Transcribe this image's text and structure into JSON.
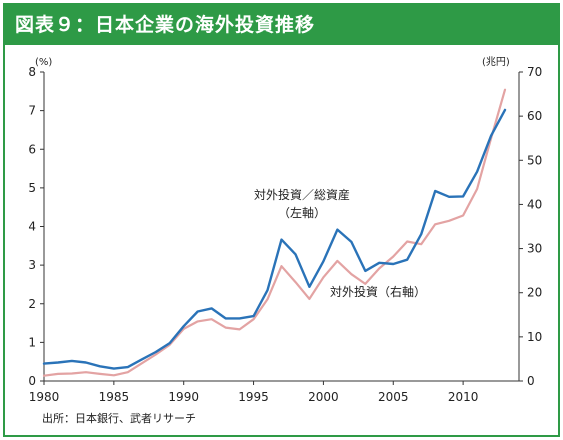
{
  "title": "図表９：日本企業の海外投資推移",
  "source": "出所：日本銀行、武者リサーチ",
  "chart_data": {
    "type": "line",
    "y_left_unit": "(%)",
    "y_right_unit": "(兆円)",
    "y_left_range": [
      0,
      8
    ],
    "y_right_range": [
      0,
      70
    ],
    "x_range": [
      1980,
      2014
    ],
    "x_ticks": [
      "1980",
      "1985",
      "1990",
      "1995",
      "2000",
      "2005",
      "2010"
    ],
    "y_left_ticks": [
      "0",
      "1",
      "2",
      "3",
      "4",
      "5",
      "6",
      "7",
      "8"
    ],
    "y_right_ticks": [
      "0",
      "10",
      "20",
      "30",
      "40",
      "50",
      "60",
      "70"
    ],
    "annotations": {
      "ratio_line1": "対外投資／総資産",
      "ratio_line2": "（左軸）",
      "amount": "対外投資（右軸）"
    },
    "series": [
      {
        "name": "対外投資／総資産（左軸）",
        "axis": "left",
        "color": "#2a73b8",
        "x": [
          1980,
          1981,
          1982,
          1983,
          1984,
          1985,
          1986,
          1987,
          1988,
          1989,
          1990,
          1991,
          1992,
          1993,
          1994,
          1995,
          1996,
          1997,
          1998,
          1999,
          2000,
          2001,
          2002,
          2003,
          2004,
          2005,
          2006,
          2007,
          2008,
          2009,
          2010,
          2011,
          2012,
          2013
        ],
        "y": [
          0.45,
          0.48,
          0.52,
          0.48,
          0.38,
          0.32,
          0.36,
          0.56,
          0.75,
          0.98,
          1.42,
          1.8,
          1.88,
          1.62,
          1.62,
          1.68,
          2.35,
          3.66,
          3.28,
          2.44,
          3.1,
          3.92,
          3.6,
          2.85,
          3.06,
          3.03,
          3.14,
          3.8,
          4.92,
          4.77,
          4.78,
          5.42,
          6.35,
          7.02
        ]
      },
      {
        "name": "対外投資（右軸）",
        "axis": "right",
        "color": "#e3a3a3",
        "x": [
          1980,
          1981,
          1982,
          1983,
          1984,
          1985,
          1986,
          1987,
          1988,
          1989,
          1990,
          1991,
          1992,
          1993,
          1994,
          1995,
          1996,
          1997,
          1998,
          1999,
          2000,
          2001,
          2002,
          2003,
          2004,
          2005,
          2006,
          2007,
          2008,
          2009,
          2010,
          2011,
          2012,
          2013
        ],
        "y": [
          1.2,
          1.6,
          1.7,
          2.0,
          1.6,
          1.3,
          2.0,
          4.0,
          6.0,
          8.2,
          11.8,
          13.5,
          14.0,
          12.1,
          11.7,
          14.0,
          18.5,
          26.0,
          22.4,
          18.6,
          23.5,
          27.2,
          24.2,
          22.0,
          25.5,
          28.2,
          31.6,
          31.0,
          35.5,
          36.3,
          37.5,
          43.5,
          55.0,
          66.0
        ]
      }
    ]
  }
}
